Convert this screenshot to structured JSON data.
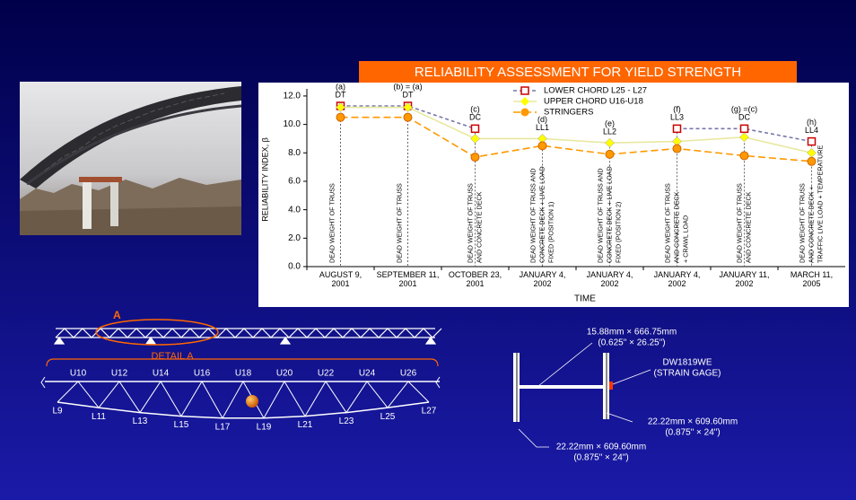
{
  "chart_data": {
    "type": "line",
    "title": "RELIABILITY ASSESSMENT FOR YIELD STRENGTH",
    "ylabel": "RELIABILITY INDEX, β",
    "xlabel": "TIME",
    "categories": [
      "AUGUST 9,\n2001",
      "SEPTEMBER 11,\n2001",
      "OCTOBER 23,\n2001",
      "JANUARY 4,\n2002",
      "JANUARY 4,\n2002",
      "JANUARY 4,\n2002",
      "JANUARY 11,\n2002",
      "MARCH 11,\n2005"
    ],
    "ylim": [
      0,
      12.5
    ],
    "yticks": [
      {
        "value": 0,
        "label": "0.0"
      },
      {
        "value": 2,
        "label": "2.0"
      },
      {
        "value": 4,
        "label": "4.0"
      },
      {
        "value": 6,
        "label": "6.0"
      },
      {
        "value": 8,
        "label": "8.0"
      },
      {
        "value": 10,
        "label": "10.0"
      },
      {
        "value": 12,
        "label": "12.0"
      }
    ],
    "series": [
      {
        "name": "LOWER CHORD L25 - L27",
        "color": "#cc0000",
        "marker": "square",
        "values": [
          11.3,
          11.3,
          9.7,
          null,
          null,
          9.7,
          9.7,
          8.8
        ]
      },
      {
        "name": "UPPER CHORD U16-U18",
        "color": "#ffff00",
        "marker": "diamond",
        "values": [
          11.2,
          11.2,
          9.0,
          9.0,
          8.7,
          8.8,
          9.1,
          8.0
        ]
      },
      {
        "name": "STRINGERS",
        "color": "#ff9900",
        "marker": "circle",
        "values": [
          10.5,
          10.5,
          7.7,
          8.5,
          7.9,
          8.3,
          7.8,
          7.4
        ]
      }
    ],
    "point_labels": [
      [
        "(a)",
        "DT"
      ],
      [
        "(b) = (a)",
        "DT"
      ],
      [
        "(c)",
        "DC"
      ],
      [
        "(d)",
        "LL1"
      ],
      [
        "(e)",
        "LL2"
      ],
      [
        "(f)",
        "LL3"
      ],
      [
        "(g) =(c)",
        "DC"
      ],
      [
        "(h)",
        "LL4"
      ]
    ],
    "load_notes": [
      [
        "DEAD WEIGHT OF TRUSS"
      ],
      [
        "DEAD WEIGHT OF TRUSS"
      ],
      [
        "DEAD WEIGHT OF TRUSS",
        "AND CONCRETE DECK"
      ],
      [
        "DEAD WEIGHT OF TRUSS AND",
        "CONCRETE DECK + LIVE LOAD",
        "FIXED (POSITION 1)"
      ],
      [
        "DEAD WEIGHT OF TRUSS AND",
        "CONCRETE DECK + LIVE LOAD",
        "FIXED (POSITION 2)"
      ],
      [
        "DEAD WEIGHT OF TRUSS",
        "AND CONCRETE DECK",
        "+ CRAWL LOAD"
      ],
      [
        "DEAD WEIGHT OF TRUSS",
        "AND CONCRETE DECK"
      ],
      [
        "DEAD WEIGHT OF TRUSS",
        "AND CONCRETE DECK +",
        "TRAFFIC LIVE LOAD + TEMPERATURE"
      ]
    ]
  },
  "truss": {
    "detail_marker": "A",
    "detail_title": "DETAIL A",
    "upper_labels": [
      "U10",
      "U12",
      "U14",
      "U16",
      "U18",
      "U20",
      "U22",
      "U24",
      "U26"
    ],
    "lower_labels": [
      "L9",
      "L11",
      "L13",
      "L15",
      "L17",
      "L19",
      "L21",
      "L23",
      "L25",
      "L27"
    ]
  },
  "section": {
    "web": [
      "15.88mm × 666.75mm",
      "(0.625\" × 26.25\")"
    ],
    "gage": [
      "DW1819WE",
      "(STRAIN GAGE)"
    ],
    "right_flange": [
      "22.22mm × 609.60mm",
      "(0.875\" × 24\")"
    ],
    "left_flange": [
      "22.22mm × 609.60mm",
      "(0.875\" × 24\")"
    ]
  }
}
